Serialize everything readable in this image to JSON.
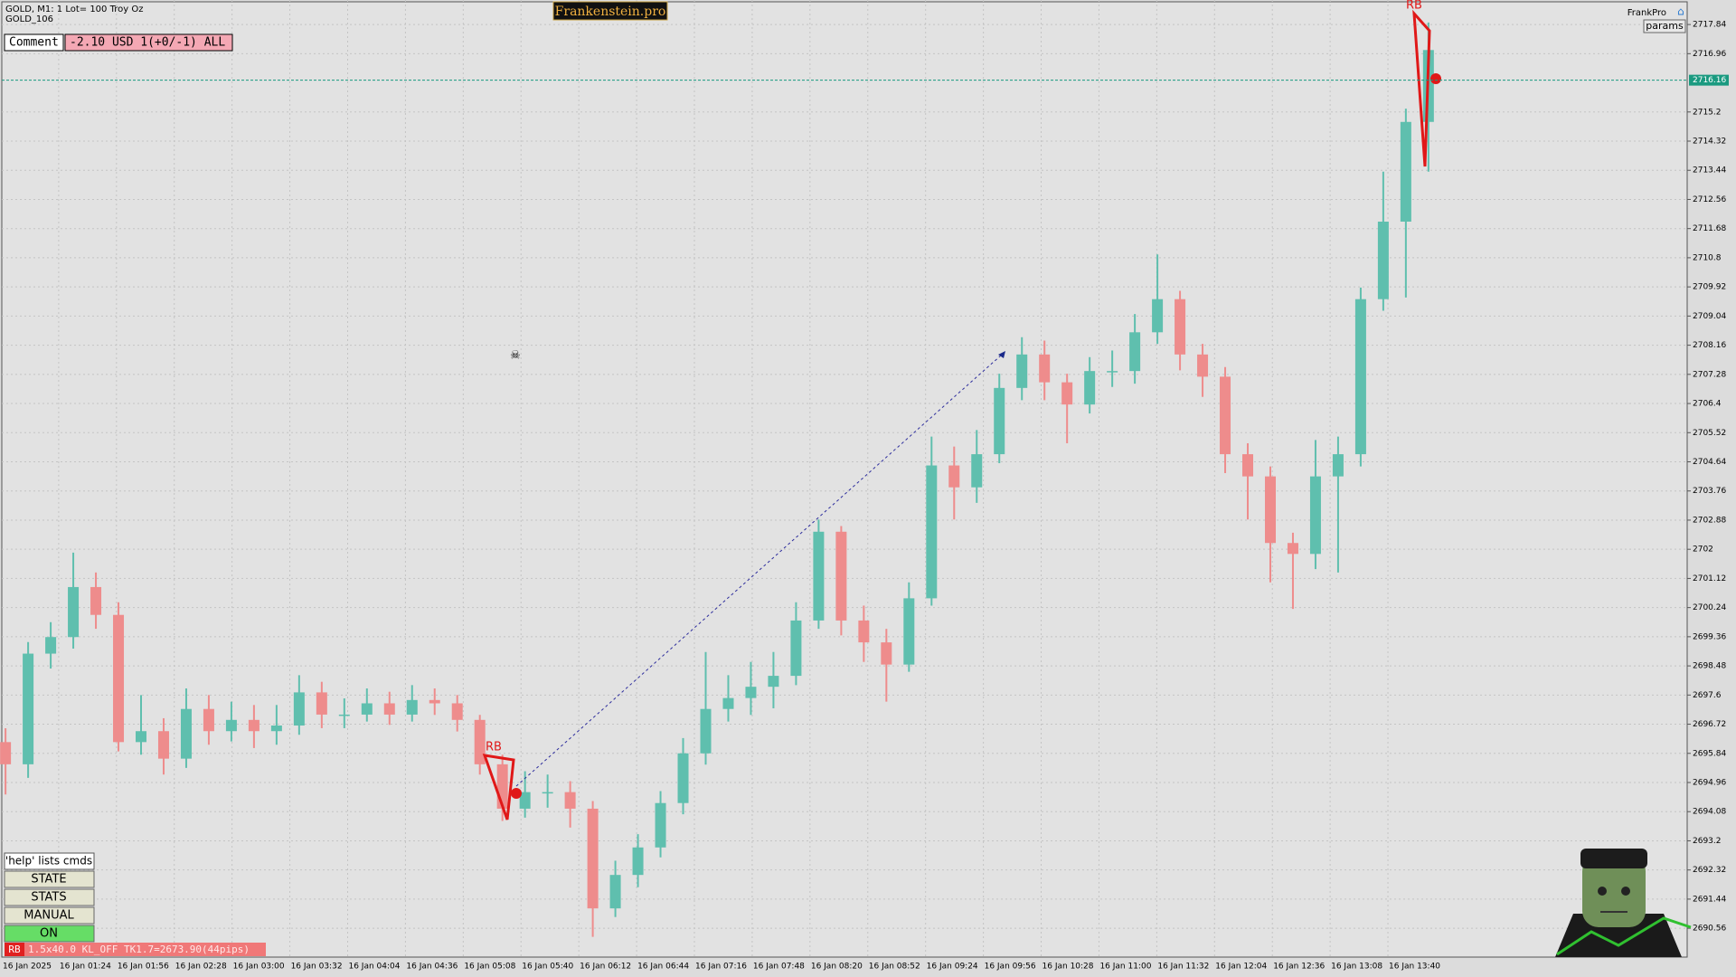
{
  "header": {
    "symbol": "GOLD, M1:  1 Lot= 100 Troy Oz",
    "account": "GOLD_106",
    "brand": "Frankenstein.pro",
    "user": "FrankPro",
    "params": "params"
  },
  "comment": {
    "label": "Comment",
    "value": "-2.10 USD 1(+0/-1) ALL"
  },
  "panel": {
    "help": "'help' lists cmds",
    "buttons": [
      "STATE",
      "STATS",
      "MANUAL",
      "ON"
    ]
  },
  "status": {
    "tag": "RB",
    "text": "1.5x40.0 KL_OFF TK1.7=2673.90(44pips)"
  },
  "annotations": [
    "RB",
    "RB"
  ],
  "chart_data": {
    "type": "candlestick",
    "open": [
      2696.18,
      2695.51,
      2698.85,
      2699.35,
      2700.86,
      2700.02,
      2696.18,
      2696.51,
      2695.68,
      2697.18,
      2696.51,
      2696.85,
      2696.51,
      2696.68,
      2697.68,
      2697.01,
      2697.01,
      2697.35,
      2697.01,
      2697.45,
      2697.35,
      2696.85,
      2695.51,
      2694.17,
      2694.67,
      2694.67,
      2694.17,
      2691.16,
      2692.17,
      2693.0,
      2694.34,
      2695.84,
      2697.18,
      2697.51,
      2697.85,
      2698.18,
      2699.85,
      2702.53,
      2699.85,
      2699.19,
      2698.52,
      2700.52,
      2704.53,
      2703.87,
      2704.87,
      2706.87,
      2707.88,
      2707.04,
      2706.37,
      2707.38,
      2707.38,
      2708.55,
      2709.55,
      2707.88,
      2707.21,
      2704.87,
      2704.2,
      2702.19,
      2701.86,
      2704.2,
      2704.87,
      2709.55,
      2711.89,
      2714.9
    ],
    "high": [
      2696.6,
      2699.2,
      2699.8,
      2701.9,
      2701.3,
      2700.4,
      2697.6,
      2696.9,
      2697.8,
      2697.6,
      2697.4,
      2697.3,
      2697.3,
      2698.2,
      2698.0,
      2697.5,
      2697.8,
      2697.7,
      2697.9,
      2697.8,
      2697.6,
      2697.0,
      2695.8,
      2695.3,
      2695.2,
      2695.0,
      2694.4,
      2692.6,
      2693.4,
      2694.7,
      2696.3,
      2698.9,
      2698.2,
      2698.6,
      2698.9,
      2700.4,
      2702.9,
      2702.7,
      2700.3,
      2699.6,
      2701.0,
      2705.4,
      2705.1,
      2705.6,
      2707.3,
      2708.4,
      2708.3,
      2707.3,
      2707.8,
      2708.0,
      2709.1,
      2710.9,
      2709.8,
      2708.2,
      2707.5,
      2705.2,
      2704.5,
      2702.5,
      2705.3,
      2705.4,
      2709.9,
      2713.4,
      2715.3,
      2717.9
    ],
    "low": [
      2694.6,
      2695.1,
      2698.4,
      2699.0,
      2699.6,
      2695.9,
      2695.8,
      2695.2,
      2695.4,
      2696.1,
      2696.2,
      2696.0,
      2696.1,
      2696.4,
      2696.6,
      2696.6,
      2696.8,
      2696.7,
      2696.8,
      2697.0,
      2696.5,
      2695.2,
      2693.8,
      2693.9,
      2694.2,
      2693.6,
      2690.3,
      2690.9,
      2691.8,
      2692.7,
      2694.0,
      2695.5,
      2696.8,
      2697.0,
      2697.2,
      2697.9,
      2699.6,
      2699.4,
      2698.6,
      2697.4,
      2698.3,
      2700.3,
      2702.9,
      2703.4,
      2704.6,
      2706.5,
      2706.5,
      2705.2,
      2706.1,
      2706.9,
      2707.0,
      2708.2,
      2707.4,
      2706.6,
      2704.3,
      2702.9,
      2701.0,
      2700.2,
      2701.4,
      2701.3,
      2704.5,
      2709.2,
      2709.6,
      2713.4
    ],
    "close": [
      2695.51,
      2698.85,
      2699.35,
      2700.86,
      2700.02,
      2696.18,
      2696.51,
      2695.68,
      2697.18,
      2696.51,
      2696.85,
      2696.51,
      2696.68,
      2697.68,
      2697.01,
      2697.01,
      2697.35,
      2697.01,
      2697.45,
      2697.35,
      2696.85,
      2695.51,
      2694.17,
      2694.67,
      2694.67,
      2694.17,
      2691.16,
      2692.17,
      2693.0,
      2694.34,
      2695.84,
      2697.18,
      2697.51,
      2697.85,
      2698.18,
      2699.85,
      2702.53,
      2699.85,
      2699.19,
      2698.52,
      2700.52,
      2704.53,
      2703.87,
      2704.87,
      2706.87,
      2707.88,
      2707.04,
      2706.37,
      2707.38,
      2707.38,
      2708.55,
      2709.55,
      2707.88,
      2707.21,
      2704.87,
      2704.2,
      2702.19,
      2701.86,
      2704.2,
      2704.87,
      2709.55,
      2711.89,
      2714.9,
      2717.07
    ],
    "up_color": "#5fbfae",
    "down_color": "#ee8c8c",
    "last_price": 2716.16,
    "ylim": [
      2689.69,
      2718.58
    ],
    "yticks": [
      2717.84,
      2716.96,
      2715.2,
      2714.32,
      2713.44,
      2712.56,
      2711.68,
      2710.8,
      2709.92,
      2709.04,
      2708.16,
      2707.28,
      2706.4,
      2705.52,
      2704.64,
      2703.76,
      2702.88,
      2702.0,
      2701.12,
      2700.24,
      2699.36,
      2698.48,
      2697.6,
      2696.72,
      2695.84,
      2694.96,
      2694.08,
      2693.2,
      2692.32,
      2691.44,
      2690.56
    ],
    "x_labels": [
      "16 Jan 2025",
      "16 Jan 01:24",
      "16 Jan 01:56",
      "16 Jan 02:28",
      "16 Jan 03:00",
      "16 Jan 03:32",
      "16 Jan 04:04",
      "16 Jan 04:36",
      "16 Jan 05:08",
      "16 Jan 05:40",
      "16 Jan 06:12",
      "16 Jan 06:44",
      "16 Jan 07:16",
      "16 Jan 07:48",
      "16 Jan 08:20",
      "16 Jan 08:52",
      "16 Jan 09:24",
      "16 Jan 09:56",
      "16 Jan 10:28",
      "16 Jan 11:00",
      "16 Jan 11:32",
      "16 Jan 12:04",
      "16 Jan 12:36",
      "16 Jan 13:08",
      "16 Jan 13:40"
    ],
    "grid": true
  }
}
